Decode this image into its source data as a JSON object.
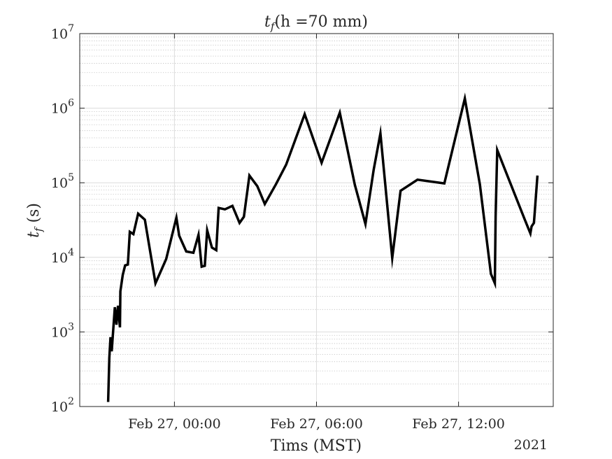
{
  "chart_data": {
    "type": "line",
    "title_prefix": "t",
    "title_sub": "f",
    "title_rest": "(h =70 mm)",
    "ylabel_prefix": "t",
    "ylabel_sub": "f",
    "ylabel_rest": " (s)",
    "xlabel": "Tims (MST)",
    "year_label": "2021",
    "y_scale": "log",
    "ylim": [
      100,
      10000000
    ],
    "xlim": [
      "2021-02-26 20:00",
      "2021-02-27 16:00"
    ],
    "grid": true,
    "x_ticks": [
      {
        "at": "2021-02-27 00:00",
        "label": "Feb 27, 00:00"
      },
      {
        "at": "2021-02-27 06:00",
        "label": "Feb 27, 06:00"
      },
      {
        "at": "2021-02-27 12:00",
        "label": "Feb 27, 12:00"
      }
    ],
    "y_ticks": [
      {
        "value": 100,
        "base": "10",
        "exp": "2"
      },
      {
        "value": 1000,
        "base": "10",
        "exp": "3"
      },
      {
        "value": 10000,
        "base": "10",
        "exp": "4"
      },
      {
        "value": 100000,
        "base": "10",
        "exp": "5"
      },
      {
        "value": 1000000,
        "base": "10",
        "exp": "6"
      },
      {
        "value": 10000000,
        "base": "10",
        "exp": "7"
      }
    ],
    "series": [
      {
        "color": "#000000",
        "x": [
          "2021-02-26 21:12",
          "2021-02-26 21:15",
          "2021-02-26 21:18",
          "2021-02-26 21:21",
          "2021-02-26 21:29",
          "2021-02-26 21:33",
          "2021-02-26 21:37",
          "2021-02-26 21:42",
          "2021-02-26 21:43",
          "2021-02-26 21:49",
          "2021-02-26 21:55",
          "2021-02-26 22:02",
          "2021-02-26 22:07",
          "2021-02-26 22:16",
          "2021-02-26 22:28",
          "2021-02-26 22:45",
          "2021-02-26 23:12",
          "2021-02-26 23:39",
          "2021-02-27 00:05",
          "2021-02-27 00:12",
          "2021-02-27 00:30",
          "2021-02-27 00:48",
          "2021-02-27 01:01",
          "2021-02-27 01:09",
          "2021-02-27 01:17",
          "2021-02-27 01:23",
          "2021-02-27 01:35",
          "2021-02-27 01:46",
          "2021-02-27 01:52",
          "2021-02-27 02:08",
          "2021-02-27 02:27",
          "2021-02-27 02:45",
          "2021-02-27 02:56",
          "2021-02-27 03:10",
          "2021-02-27 03:30",
          "2021-02-27 03:49",
          "2021-02-27 04:17",
          "2021-02-27 04:43",
          "2021-02-27 05:30",
          "2021-02-27 06:13",
          "2021-02-27 06:59",
          "2021-02-27 07:37",
          "2021-02-27 08:04",
          "2021-02-27 08:25",
          "2021-02-27 08:42",
          "2021-02-27 09:12",
          "2021-02-27 09:33",
          "2021-02-27 10:16",
          "2021-02-27 11:24",
          "2021-02-27 12:16",
          "2021-02-27 12:54",
          "2021-02-27 13:22",
          "2021-02-27 13:32",
          "2021-02-27 13:34",
          "2021-02-27 13:38",
          "2021-02-27 14:49",
          "2021-02-27 15:02",
          "2021-02-27 15:05",
          "2021-02-27 15:11",
          "2021-02-27 15:20"
        ],
        "y": [
          115,
          450,
          850,
          550,
          2150,
          1250,
          2250,
          1150,
          3500,
          5800,
          7800,
          8000,
          22000,
          20500,
          38500,
          32000,
          4500,
          9500,
          34000,
          19500,
          12000,
          11500,
          20000,
          7500,
          7700,
          23000,
          13500,
          12500,
          46000,
          44000,
          49000,
          29000,
          35000,
          125000,
          90000,
          52000,
          95000,
          175000,
          830000,
          185000,
          870000,
          95000,
          28000,
          150000,
          460000,
          9800,
          78000,
          110000,
          98000,
          1350000,
          95000,
          6000,
          4500,
          35000,
          275000,
          31000,
          21000,
          26000,
          29000,
          125000
        ]
      }
    ]
  }
}
